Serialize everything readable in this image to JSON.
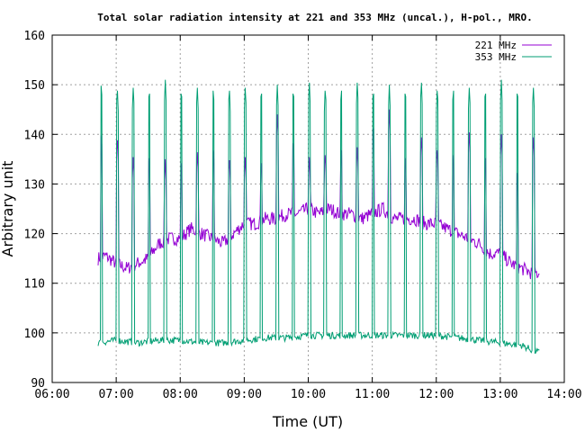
{
  "chart_data": {
    "type": "line",
    "title": "Total solar radiation intensity at 221 and 353 MHz (uncal.), H-pol., MRO.",
    "xlabel": "Time (UT)",
    "ylabel": "Arbitrary unit",
    "xlim": [
      "06:00",
      "14:00"
    ],
    "ylim": [
      90,
      160
    ],
    "x_ticks": [
      "06:00",
      "07:00",
      "08:00",
      "09:00",
      "10:00",
      "11:00",
      "12:00",
      "13:00",
      "14:00"
    ],
    "y_ticks": [
      "90",
      "100",
      "110",
      "120",
      "130",
      "140",
      "150",
      "160"
    ],
    "grid": true,
    "legend_position": "top-right",
    "series": [
      {
        "name": "221 MHz",
        "color": "#9400d3",
        "baseline_points": [
          [
            "06:43",
            115
          ],
          [
            "06:50",
            115.5
          ],
          [
            "07:00",
            114
          ],
          [
            "07:10",
            113
          ],
          [
            "07:20",
            114
          ],
          [
            "07:30",
            115
          ],
          [
            "07:40",
            118
          ],
          [
            "07:50",
            119
          ],
          [
            "08:00",
            119
          ],
          [
            "08:10",
            121
          ],
          [
            "08:20",
            120
          ],
          [
            "08:30",
            119
          ],
          [
            "08:40",
            118
          ],
          [
            "08:50",
            120
          ],
          [
            "09:00",
            122
          ],
          [
            "09:10",
            122
          ],
          [
            "09:20",
            123
          ],
          [
            "09:30",
            123
          ],
          [
            "09:40",
            124
          ],
          [
            "09:50",
            124
          ],
          [
            "10:00",
            125
          ],
          [
            "10:10",
            124
          ],
          [
            "10:20",
            125
          ],
          [
            "10:30",
            124
          ],
          [
            "10:40",
            124
          ],
          [
            "10:50",
            123
          ],
          [
            "11:00",
            124
          ],
          [
            "11:10",
            125
          ],
          [
            "11:20",
            123
          ],
          [
            "11:30",
            123
          ],
          [
            "11:40",
            123
          ],
          [
            "11:50",
            122
          ],
          [
            "12:00",
            122
          ],
          [
            "12:10",
            121
          ],
          [
            "12:20",
            120
          ],
          [
            "12:30",
            119
          ],
          [
            "12:40",
            118
          ],
          [
            "12:50",
            116
          ],
          [
            "13:00",
            116
          ],
          [
            "13:10",
            114
          ],
          [
            "13:20",
            113
          ],
          [
            "13:30",
            112
          ],
          [
            "13:37",
            112
          ]
        ],
        "calibration_peaks": [
          [
            "06:46",
            141
          ],
          [
            "07:01",
            140
          ],
          [
            "07:16",
            136
          ],
          [
            "07:31",
            137
          ],
          [
            "07:46",
            135
          ],
          [
            "08:01",
            136
          ],
          [
            "08:16",
            137
          ],
          [
            "08:31",
            138
          ],
          [
            "08:46",
            136
          ],
          [
            "09:01",
            136
          ],
          [
            "09:16",
            136
          ],
          [
            "09:31",
            144
          ],
          [
            "09:46",
            140
          ],
          [
            "10:01",
            136
          ],
          [
            "10:16",
            137
          ],
          [
            "10:31",
            138
          ],
          [
            "10:46",
            138
          ],
          [
            "11:01",
            143
          ],
          [
            "11:16",
            145
          ],
          [
            "11:31",
            137
          ],
          [
            "11:46",
            140
          ],
          [
            "12:01",
            138
          ],
          [
            "12:16",
            137
          ],
          [
            "12:31",
            141
          ],
          [
            "12:46",
            137
          ],
          [
            "13:01",
            140
          ],
          [
            "13:16",
            134
          ],
          [
            "13:31",
            140
          ]
        ]
      },
      {
        "name": "353 MHz",
        "color": "#009e73",
        "baseline_points": [
          [
            "06:43",
            98
          ],
          [
            "07:00",
            98.5
          ],
          [
            "07:20",
            98
          ],
          [
            "07:40",
            98.5
          ],
          [
            "08:00",
            98.5
          ],
          [
            "08:20",
            98
          ],
          [
            "08:40",
            98
          ],
          [
            "09:00",
            98.5
          ],
          [
            "09:20",
            99
          ],
          [
            "09:40",
            99
          ],
          [
            "10:00",
            99.5
          ],
          [
            "10:20",
            99.5
          ],
          [
            "10:40",
            99.5
          ],
          [
            "11:00",
            99.5
          ],
          [
            "11:20",
            99.5
          ],
          [
            "11:40",
            99.5
          ],
          [
            "12:00",
            99.5
          ],
          [
            "12:20",
            99
          ],
          [
            "12:40",
            98.5
          ],
          [
            "13:00",
            98
          ],
          [
            "13:20",
            97.5
          ],
          [
            "13:30",
            96.5
          ],
          [
            "13:37",
            96
          ]
        ],
        "calibration_peaks": [
          [
            "06:46",
            151
          ],
          [
            "07:01",
            150
          ],
          [
            "07:16",
            150
          ],
          [
            "07:31",
            150
          ],
          [
            "07:46",
            151
          ],
          [
            "08:01",
            150
          ],
          [
            "08:16",
            150
          ],
          [
            "08:31",
            150
          ],
          [
            "08:46",
            150
          ],
          [
            "09:01",
            150
          ],
          [
            "09:16",
            150
          ],
          [
            "09:31",
            150
          ],
          [
            "09:46",
            150
          ],
          [
            "10:01",
            151
          ],
          [
            "10:16",
            150
          ],
          [
            "10:31",
            150
          ],
          [
            "10:46",
            151
          ],
          [
            "11:01",
            150
          ],
          [
            "11:16",
            150
          ],
          [
            "11:31",
            150
          ],
          [
            "11:46",
            151
          ],
          [
            "12:01",
            150
          ],
          [
            "12:16",
            150
          ],
          [
            "12:31",
            150
          ],
          [
            "12:46",
            150
          ],
          [
            "13:01",
            151
          ],
          [
            "13:16",
            150
          ],
          [
            "13:31",
            150
          ]
        ]
      }
    ]
  }
}
